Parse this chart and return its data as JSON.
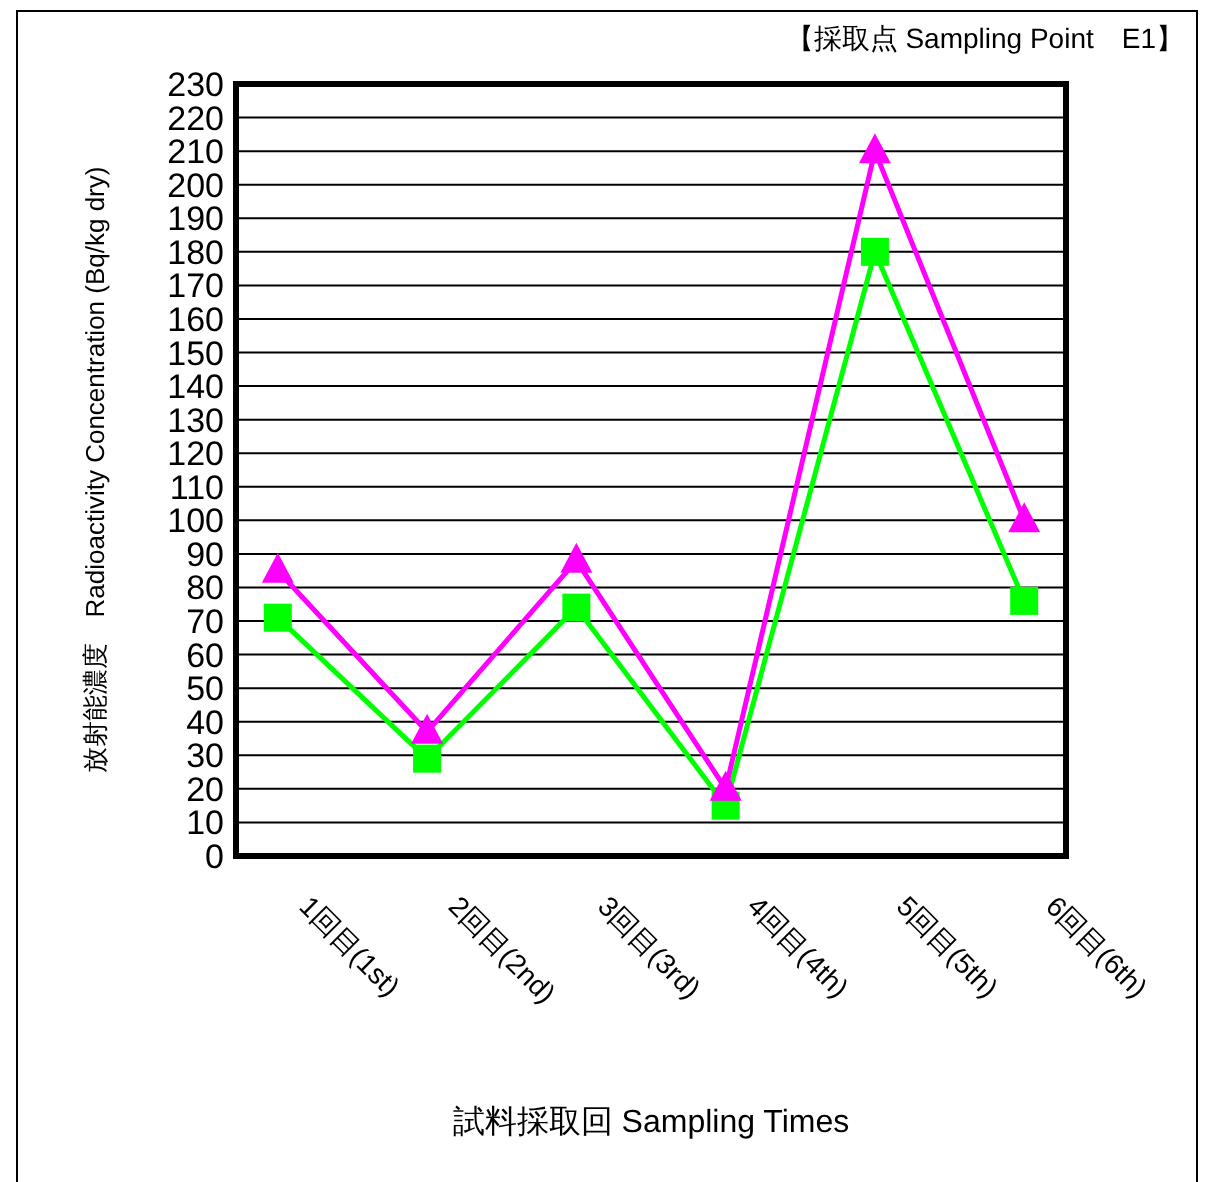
{
  "chart_data": {
    "type": "line",
    "title": "【採取点 Sampling Point　E1】",
    "xlabel": "試料採取回 Sampling Times",
    "ylabel": "放射能濃度　Radioactivity Concentration (Bq/kg dry)",
    "categories": [
      "1回目(1st)",
      "2回目(2nd)",
      "3回目(3rd)",
      "4回目(4th)",
      "5回目(5th)",
      "6回目(6th)"
    ],
    "series": [
      {
        "color": "#ff00ff",
        "marker": "triangle",
        "values": [
          85,
          37,
          88,
          20,
          210,
          100
        ]
      },
      {
        "color": "#00ff00",
        "marker": "square",
        "values": [
          71,
          29,
          74,
          15,
          180,
          76
        ]
      }
    ],
    "ylim": [
      0,
      230
    ],
    "yticks": [
      0,
      10,
      20,
      30,
      40,
      50,
      60,
      70,
      80,
      90,
      100,
      110,
      120,
      130,
      140,
      150,
      160,
      170,
      180,
      190,
      200,
      210,
      220,
      230
    ],
    "grid": "y"
  }
}
